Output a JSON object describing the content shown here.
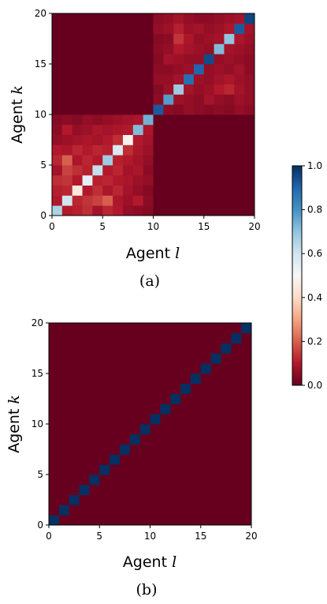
{
  "chart_data": [
    {
      "type": "heatmap",
      "panel_label": "(a)",
      "xlabel": "Agent",
      "xlabel_var": "l",
      "ylabel": "Agent",
      "ylabel_var": "k",
      "xlim": [
        0,
        20
      ],
      "ylim": [
        0,
        20
      ],
      "xticks": [
        0,
        5,
        10,
        15,
        20
      ],
      "yticks": [
        0,
        5,
        10,
        15,
        20
      ],
      "grid_size": 20,
      "description_values": "row index k (0 = bottom), column index l (0 = left); value in [0,1]",
      "values": [
        [
          0.66,
          0.1,
          0.11,
          0.13,
          0.08,
          0.12,
          0.1,
          0.06,
          0.05,
          0.04,
          0.0,
          0.0,
          0.0,
          0.0,
          0.0,
          0.0,
          0.0,
          0.0,
          0.0,
          0.0
        ],
        [
          0.1,
          0.6,
          0.12,
          0.14,
          0.16,
          0.2,
          0.09,
          0.07,
          0.1,
          0.05,
          0.0,
          0.0,
          0.0,
          0.0,
          0.0,
          0.0,
          0.0,
          0.0,
          0.0,
          0.0
        ],
        [
          0.11,
          0.12,
          0.45,
          0.1,
          0.13,
          0.09,
          0.12,
          0.08,
          0.06,
          0.04,
          0.0,
          0.0,
          0.0,
          0.0,
          0.0,
          0.0,
          0.0,
          0.0,
          0.0,
          0.0
        ],
        [
          0.13,
          0.14,
          0.1,
          0.55,
          0.11,
          0.12,
          0.1,
          0.09,
          0.07,
          0.06,
          0.0,
          0.0,
          0.0,
          0.0,
          0.0,
          0.0,
          0.0,
          0.0,
          0.0,
          0.0
        ],
        [
          0.08,
          0.16,
          0.13,
          0.11,
          0.62,
          0.1,
          0.12,
          0.08,
          0.09,
          0.05,
          0.0,
          0.0,
          0.0,
          0.0,
          0.0,
          0.0,
          0.0,
          0.0,
          0.0,
          0.0
        ],
        [
          0.12,
          0.2,
          0.09,
          0.12,
          0.1,
          0.68,
          0.11,
          0.1,
          0.08,
          0.06,
          0.0,
          0.0,
          0.0,
          0.0,
          0.0,
          0.0,
          0.0,
          0.0,
          0.0,
          0.0
        ],
        [
          0.1,
          0.09,
          0.12,
          0.1,
          0.12,
          0.11,
          0.58,
          0.13,
          0.09,
          0.07,
          0.0,
          0.0,
          0.0,
          0.0,
          0.0,
          0.0,
          0.0,
          0.0,
          0.0,
          0.0
        ],
        [
          0.06,
          0.07,
          0.08,
          0.09,
          0.08,
          0.1,
          0.13,
          0.48,
          0.1,
          0.08,
          0.0,
          0.0,
          0.0,
          0.0,
          0.0,
          0.0,
          0.0,
          0.0,
          0.0,
          0.0
        ],
        [
          0.05,
          0.1,
          0.06,
          0.07,
          0.09,
          0.08,
          0.09,
          0.1,
          0.72,
          0.09,
          0.0,
          0.0,
          0.0,
          0.0,
          0.0,
          0.0,
          0.0,
          0.0,
          0.0,
          0.0
        ],
        [
          0.04,
          0.05,
          0.04,
          0.06,
          0.05,
          0.06,
          0.07,
          0.08,
          0.09,
          0.74,
          0.0,
          0.0,
          0.0,
          0.0,
          0.0,
          0.0,
          0.0,
          0.0,
          0.0,
          0.0
        ],
        [
          0.0,
          0.0,
          0.0,
          0.0,
          0.0,
          0.0,
          0.0,
          0.0,
          0.0,
          0.0,
          0.92,
          0.05,
          0.04,
          0.06,
          0.05,
          0.04,
          0.05,
          0.04,
          0.06,
          0.05
        ],
        [
          0.0,
          0.0,
          0.0,
          0.0,
          0.0,
          0.0,
          0.0,
          0.0,
          0.0,
          0.0,
          0.05,
          0.78,
          0.07,
          0.06,
          0.05,
          0.08,
          0.06,
          0.05,
          0.07,
          0.06
        ],
        [
          0.0,
          0.0,
          0.0,
          0.0,
          0.0,
          0.0,
          0.0,
          0.0,
          0.0,
          0.0,
          0.04,
          0.07,
          0.68,
          0.08,
          0.06,
          0.07,
          0.1,
          0.12,
          0.08,
          0.06
        ],
        [
          0.0,
          0.0,
          0.0,
          0.0,
          0.0,
          0.0,
          0.0,
          0.0,
          0.0,
          0.0,
          0.06,
          0.06,
          0.08,
          0.88,
          0.07,
          0.06,
          0.08,
          0.09,
          0.07,
          0.06
        ],
        [
          0.0,
          0.0,
          0.0,
          0.0,
          0.0,
          0.0,
          0.0,
          0.0,
          0.0,
          0.0,
          0.05,
          0.05,
          0.06,
          0.07,
          0.9,
          0.06,
          0.07,
          0.06,
          0.08,
          0.05
        ],
        [
          0.0,
          0.0,
          0.0,
          0.0,
          0.0,
          0.0,
          0.0,
          0.0,
          0.0,
          0.0,
          0.04,
          0.08,
          0.07,
          0.06,
          0.06,
          0.95,
          0.06,
          0.07,
          0.06,
          0.05
        ],
        [
          0.0,
          0.0,
          0.0,
          0.0,
          0.0,
          0.0,
          0.0,
          0.0,
          0.0,
          0.0,
          0.05,
          0.06,
          0.1,
          0.08,
          0.07,
          0.06,
          0.72,
          0.08,
          0.07,
          0.06
        ],
        [
          0.0,
          0.0,
          0.0,
          0.0,
          0.0,
          0.0,
          0.0,
          0.0,
          0.0,
          0.0,
          0.04,
          0.05,
          0.14,
          0.09,
          0.06,
          0.07,
          0.08,
          0.7,
          0.09,
          0.07
        ],
        [
          0.0,
          0.0,
          0.0,
          0.0,
          0.0,
          0.0,
          0.0,
          0.0,
          0.0,
          0.0,
          0.06,
          0.07,
          0.11,
          0.07,
          0.08,
          0.06,
          0.07,
          0.09,
          0.92,
          0.08
        ],
        [
          0.0,
          0.0,
          0.0,
          0.0,
          0.0,
          0.0,
          0.0,
          0.0,
          0.0,
          0.0,
          0.05,
          0.06,
          0.08,
          0.06,
          0.05,
          0.05,
          0.06,
          0.07,
          0.08,
          0.96
        ]
      ]
    },
    {
      "type": "heatmap",
      "panel_label": "(b)",
      "xlabel": "Agent",
      "xlabel_var": "l",
      "ylabel": "Agent",
      "ylabel_var": "k",
      "xlim": [
        0,
        20
      ],
      "ylim": [
        0,
        20
      ],
      "xticks": [
        0,
        5,
        10,
        15,
        20
      ],
      "yticks": [
        0,
        5,
        10,
        15,
        20
      ],
      "grid_size": 20,
      "diagonal_value": 1.0,
      "off_diagonal_value": 0.0
    }
  ],
  "colorbar": {
    "colormap": "RdBu",
    "vmin": 0.0,
    "vmax": 1.0,
    "tick_values": [
      0.0,
      0.2,
      0.4,
      0.6,
      0.8,
      1.0
    ],
    "tick_labels": [
      "0.0",
      "0.2",
      "0.4",
      "0.6",
      "0.8",
      "1.0"
    ],
    "colors": [
      "#67001f",
      "#b2182b",
      "#d6604d",
      "#f4a582",
      "#fddbc7",
      "#f7f7f7",
      "#d1e5f0",
      "#92c5de",
      "#4393c3",
      "#2166ac",
      "#053061"
    ]
  }
}
